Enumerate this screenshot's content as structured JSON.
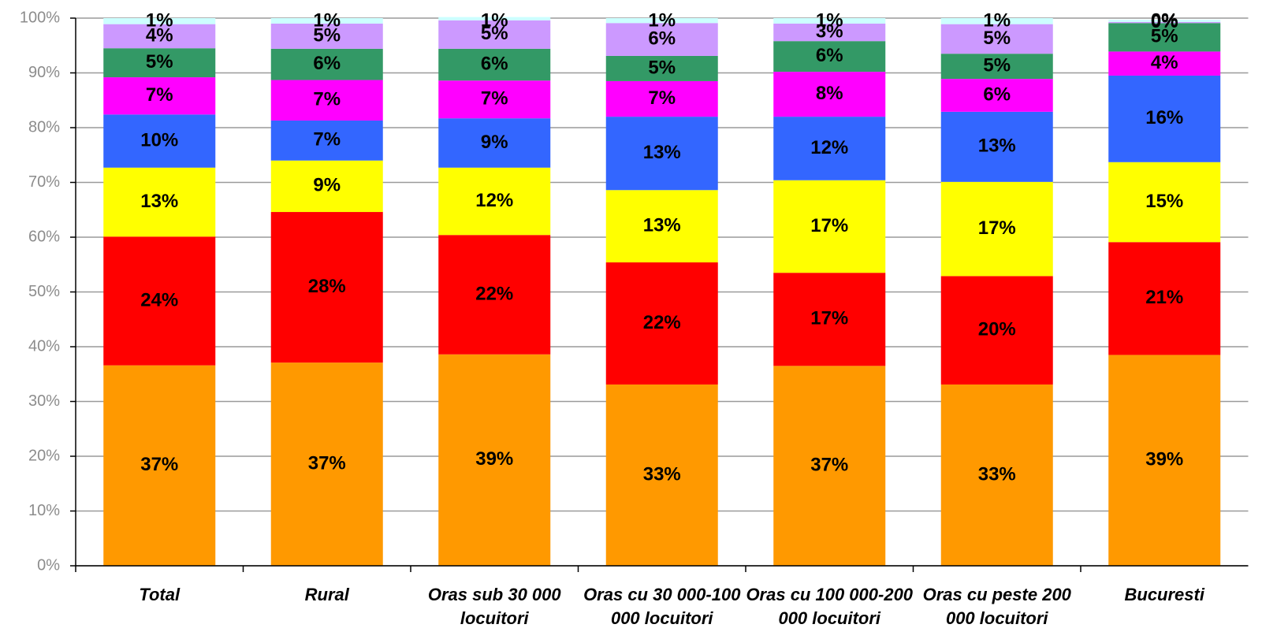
{
  "chart_data": {
    "type": "stacked_bar",
    "categories": [
      "Total",
      "Rural",
      "Oras sub 30 000 locuitori",
      "Oras cu 30 000-100 000 locuitori",
      "Oras cu 100 000-200 000 locuitori",
      "Oras cu peste 200 000 locuitori",
      "Bucuresti"
    ],
    "series": [
      {
        "color": "#ff9900",
        "values": [
          36.6,
          37.1,
          38.6,
          33.1,
          36.5,
          33.1,
          38.5
        ],
        "value_labels": [
          "37%",
          "37%",
          "39%",
          "33%",
          "37%",
          "33%",
          "39%"
        ]
      },
      {
        "color": "#ff0000",
        "values": [
          23.5,
          27.5,
          21.8,
          22.3,
          17.0,
          19.8,
          20.6
        ],
        "value_labels": [
          "24%",
          "28%",
          "22%",
          "22%",
          "17%",
          "20%",
          "21%"
        ]
      },
      {
        "color": "#ffff00",
        "values": [
          12.6,
          9.4,
          12.3,
          13.2,
          16.9,
          17.2,
          14.6
        ],
        "value_labels": [
          "13%",
          "9%",
          "12%",
          "13%",
          "17%",
          "17%",
          "15%"
        ]
      },
      {
        "color": "#3366ff",
        "values": [
          9.7,
          7.3,
          9.0,
          13.4,
          11.6,
          12.8,
          15.8
        ],
        "value_labels": [
          "10%",
          "7%",
          "9%",
          "13%",
          "12%",
          "13%",
          "16%"
        ]
      },
      {
        "color": "#ff00ff",
        "values": [
          6.8,
          7.4,
          6.9,
          6.5,
          8.2,
          6.0,
          4.4
        ],
        "value_labels": [
          "7%",
          "7%",
          "7%",
          "7%",
          "8%",
          "6%",
          "4%"
        ]
      },
      {
        "color": "#339966",
        "values": [
          5.3,
          5.7,
          5.8,
          4.6,
          5.6,
          4.6,
          5.2
        ],
        "value_labels": [
          "5%",
          "6%",
          "6%",
          "5%",
          "6%",
          "5%",
          "5%"
        ]
      },
      {
        "color": "#cc99ff",
        "values": [
          4.4,
          4.6,
          5.2,
          6.0,
          3.2,
          5.4,
          0.2
        ],
        "value_labels": [
          "4%",
          "5%",
          "5%",
          "6%",
          "3%",
          "5%",
          "0%"
        ]
      },
      {
        "color": "#ccffff",
        "values": [
          1.1,
          1.0,
          0.6,
          0.9,
          1.0,
          1.1,
          0.4
        ],
        "value_labels": [
          "1%",
          "1%",
          "1%",
          "1%",
          "1%",
          "1%",
          "0%"
        ]
      }
    ],
    "ylim": [
      0,
      100
    ],
    "yticks": [
      {
        "value": 0,
        "label": "0%"
      },
      {
        "value": 10,
        "label": "10%"
      },
      {
        "value": 20,
        "label": "20%"
      },
      {
        "value": 30,
        "label": "30%"
      },
      {
        "value": 40,
        "label": "40%"
      },
      {
        "value": 50,
        "label": "50%"
      },
      {
        "value": 60,
        "label": "60%"
      },
      {
        "value": 70,
        "label": "70%"
      },
      {
        "value": 80,
        "label": "80%"
      },
      {
        "value": 90,
        "label": "90%"
      },
      {
        "value": 100,
        "label": "100%"
      }
    ],
    "grid": true
  }
}
